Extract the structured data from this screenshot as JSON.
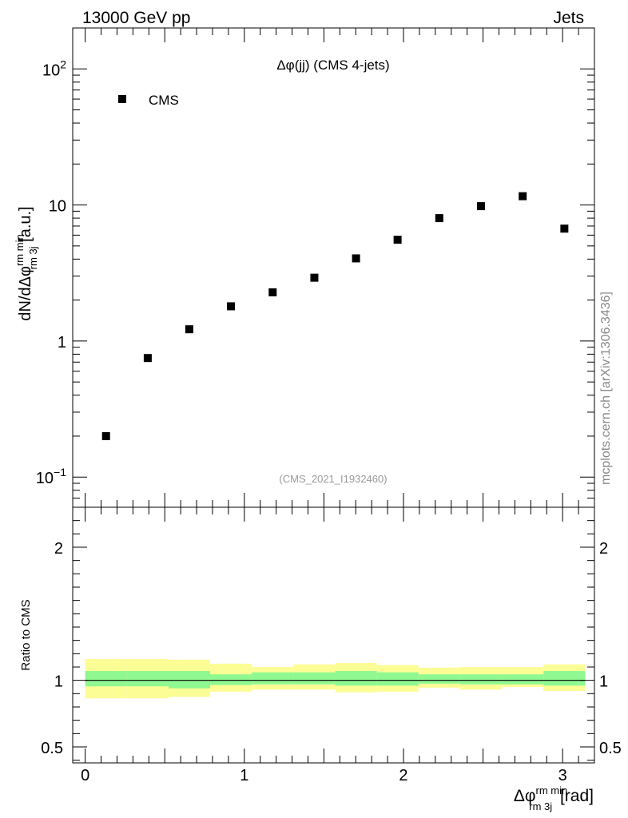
{
  "header": {
    "left": "13000 GeV pp",
    "right": "Jets"
  },
  "side_label": "mcplots.cern.ch [arXiv:1306.3436]",
  "colors": {
    "marker": "#000000",
    "green_band": "#90f890",
    "yellow_band": "#fdfd96",
    "ref_line": "#000000",
    "id_text": "#999999"
  },
  "chart_data": [
    {
      "type": "scatter",
      "title": "Δφ(jj) (CMS 4-jets)",
      "analysis_id": "(CMS_2021_I1932460)",
      "ylabel": {
        "main": "dN/dΔφ",
        "sup": "rm min",
        "sub": "rm 3j",
        "unit": " [a.u.]"
      },
      "yscale": "log",
      "ylim": [
        0.06,
        200
      ],
      "xlim": [
        -0.0785,
        3.2
      ],
      "ytick_labels": [
        {
          "value": 0.1,
          "base": "10",
          "exp": "−1"
        },
        {
          "value": 1,
          "base": "1",
          "exp": ""
        },
        {
          "value": 10,
          "base": "10",
          "exp": ""
        },
        {
          "value": 100,
          "base": "10",
          "exp": "2"
        }
      ],
      "legend": {
        "label": "CMS",
        "position": "top-left"
      },
      "series": [
        {
          "name": "CMS",
          "x": [
            0.131,
            0.393,
            0.654,
            0.916,
            1.178,
            1.44,
            1.702,
            1.963,
            2.225,
            2.487,
            2.749,
            3.011
          ],
          "y": [
            0.2,
            0.75,
            1.22,
            1.8,
            2.28,
            2.92,
            4.05,
            5.55,
            8.0,
            9.8,
            11.6,
            6.7
          ]
        }
      ]
    },
    {
      "type": "area",
      "ylabel": "Ratio to CMS",
      "xlabel": {
        "main": "Δφ",
        "sup": "rm min",
        "sub": "rm 3j",
        "unit": " [rad]"
      },
      "ylim": [
        0.38,
        2.3
      ],
      "yticks": [
        0.5,
        1,
        2
      ],
      "ytick_labels": [
        "0.5",
        "1",
        "2"
      ],
      "xticks": [
        0,
        1,
        2,
        3
      ],
      "xtick_labels": [
        "0",
        "1",
        "2",
        "3"
      ],
      "bin_edges": [
        0,
        0.262,
        0.524,
        0.785,
        1.047,
        1.309,
        1.571,
        1.833,
        2.094,
        2.356,
        2.618,
        2.88,
        3.142
      ],
      "green_band": {
        "low": [
          0.955,
          0.955,
          0.94,
          0.965,
          0.97,
          0.97,
          0.96,
          0.96,
          0.975,
          0.97,
          0.97,
          0.96
        ],
        "high": [
          1.07,
          1.07,
          1.07,
          1.045,
          1.06,
          1.06,
          1.07,
          1.06,
          1.045,
          1.045,
          1.045,
          1.07
        ]
      },
      "yellow_band": {
        "low": [
          0.865,
          0.865,
          0.875,
          0.915,
          0.93,
          0.93,
          0.91,
          0.915,
          0.945,
          0.93,
          0.95,
          0.92
        ],
        "high": [
          1.16,
          1.16,
          1.155,
          1.125,
          1.1,
          1.12,
          1.13,
          1.115,
          1.095,
          1.1,
          1.1,
          1.12
        ]
      },
      "reference_line": 1
    }
  ]
}
